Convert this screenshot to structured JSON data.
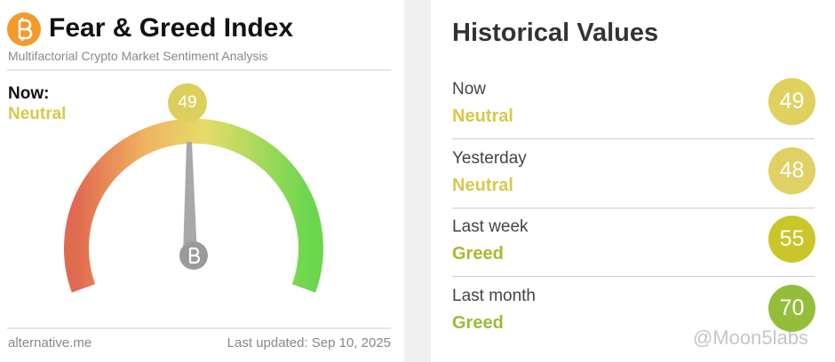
{
  "header": {
    "title": "Fear & Greed Index",
    "subtitle": "Multifactorial Crypto Market Sentiment Analysis"
  },
  "now": {
    "label": "Now:",
    "classification": "Neutral",
    "value": 49,
    "color": "#dccf5c",
    "text_color": "#d8c84a"
  },
  "footer": {
    "source": "alternative.me",
    "updated": "Last updated: Sep 10, 2025"
  },
  "historical": {
    "title": "Historical Values",
    "rows": [
      {
        "label": "Now",
        "classification": "Neutral",
        "value": 49,
        "color": "#dfd15e",
        "text_color": "#d8c84a"
      },
      {
        "label": "Yesterday",
        "classification": "Neutral",
        "value": 48,
        "color": "#dfd164",
        "text_color": "#d8c84a"
      },
      {
        "label": "Last week",
        "classification": "Greed",
        "value": 55,
        "color": "#c9c62a",
        "text_color": "#adb72a"
      },
      {
        "label": "Last month",
        "classification": "Greed",
        "value": 70,
        "color": "#95bd3c",
        "text_color": "#9bbb3a"
      }
    ]
  },
  "watermark": "@Moon5labs"
}
